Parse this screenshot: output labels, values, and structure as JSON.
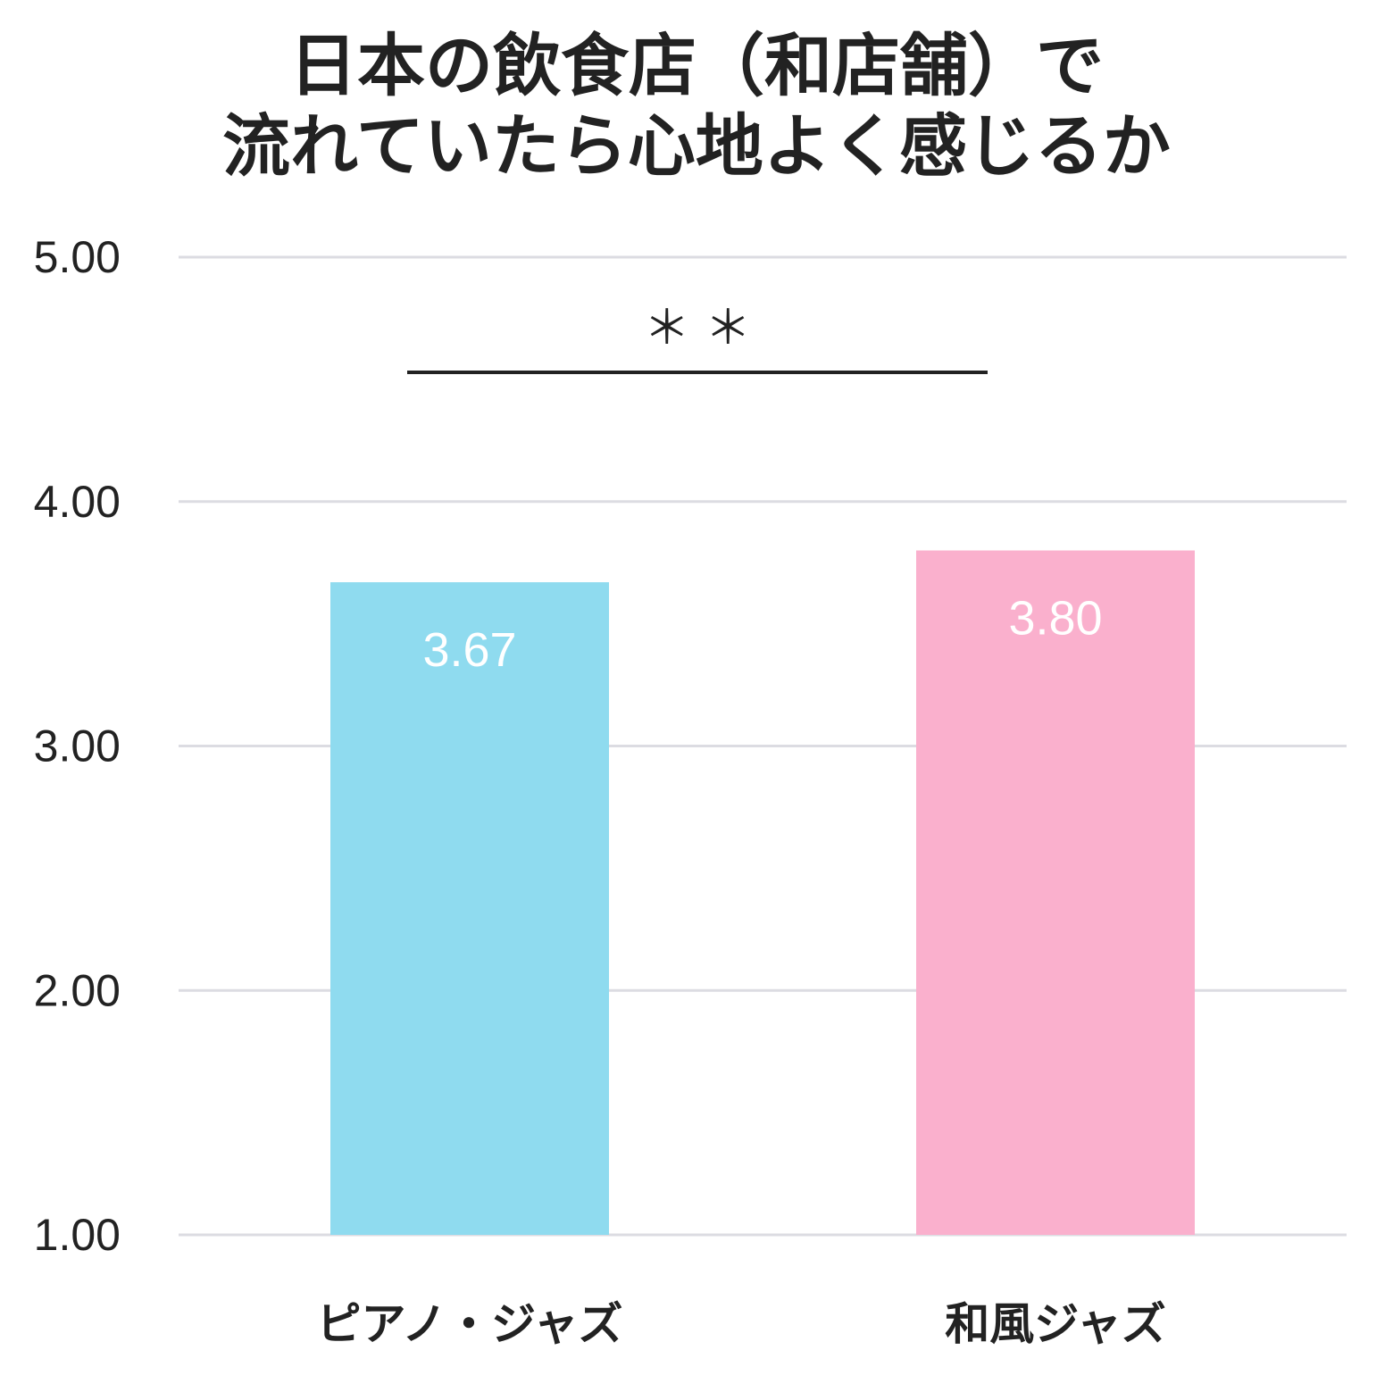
{
  "chart_data": {
    "type": "bar",
    "title_lines": [
      "日本の飲食店（和店舗）で",
      "流れていたら心地よく感じるか"
    ],
    "categories": [
      "ピアノ・ジャズ",
      "和風ジャズ"
    ],
    "values": [
      3.67,
      3.8
    ],
    "value_labels": [
      "3.67",
      "3.80"
    ],
    "bar_colors": [
      "#8fdbef",
      "#fab0cd"
    ],
    "ylim": [
      1,
      5
    ],
    "yticks": [
      1,
      2,
      3,
      4,
      5
    ],
    "ytick_labels": [
      "1.00",
      "2.00",
      "3.00",
      "4.00",
      "5.00"
    ],
    "grid": true,
    "significance": {
      "label": "＊ ＊",
      "between": [
        0,
        1
      ]
    },
    "xlabel": "",
    "ylabel": ""
  }
}
